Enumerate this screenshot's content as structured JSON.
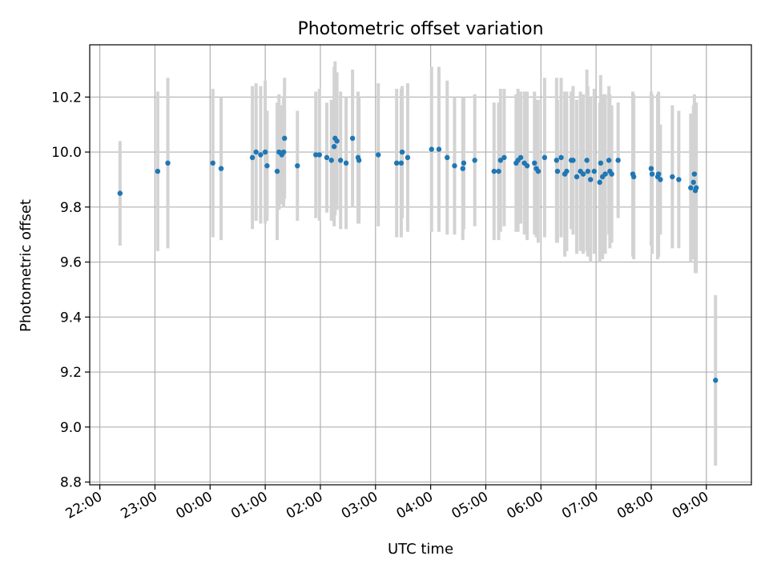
{
  "chart_data": {
    "type": "scatter",
    "title": "Photometric offset variation",
    "xlabel": "UTC time",
    "ylabel": "Photometric offset",
    "xlim": [
      "21:49",
      "09:49"
    ],
    "ylim": [
      8.79,
      10.39
    ],
    "grid": true,
    "x_ticks": [
      "22:00",
      "23:00",
      "00:00",
      "01:00",
      "02:00",
      "03:00",
      "04:00",
      "05:00",
      "06:00",
      "07:00",
      "08:00",
      "09:00"
    ],
    "y_ticks": [
      "8.8",
      "9.0",
      "9.2",
      "9.4",
      "9.6",
      "9.8",
      "10.0",
      "10.2"
    ],
    "colors": {
      "points": "#1f77b4",
      "errorbars": "#d3d3d3",
      "grid": "#b0b0b0"
    },
    "series": [
      {
        "x": [
          "22:22",
          "23:03",
          "23:14",
          "00:03",
          "00:12",
          "00:46",
          "00:50",
          "00:55",
          "01:00",
          "01:02",
          "01:13",
          "01:15",
          "01:18",
          "01:20",
          "01:21",
          "01:35",
          "01:55",
          "01:59",
          "02:07",
          "02:12",
          "02:15",
          "02:16",
          "02:18",
          "02:22",
          "02:28",
          "02:35",
          "02:41",
          "02:42",
          "03:03",
          "03:23",
          "03:28",
          "03:29",
          "03:35",
          "04:01",
          "04:09",
          "04:18",
          "04:26",
          "04:35",
          "04:36",
          "04:48",
          "05:09",
          "05:14",
          "05:16",
          "05:20",
          "05:33",
          "05:35",
          "05:38",
          "05:42",
          "05:45",
          "05:53",
          "05:55",
          "05:57",
          "06:04",
          "06:17",
          "06:18",
          "06:22",
          "06:26",
          "06:28",
          "06:33",
          "06:35",
          "06:39",
          "06:43",
          "06:46",
          "06:50",
          "06:51",
          "06:54",
          "06:58",
          "07:04",
          "07:05",
          "07:07",
          "07:10",
          "07:14",
          "07:15",
          "07:17",
          "07:24",
          "07:40",
          "07:41",
          "08:00",
          "08:01",
          "08:07",
          "08:08",
          "08:10",
          "08:23",
          "08:30",
          "08:43",
          "08:46",
          "08:47",
          "08:48",
          "08:49",
          "09:10"
        ],
        "y": [
          9.85,
          9.93,
          9.96,
          9.96,
          9.94,
          9.98,
          10.0,
          9.99,
          10.0,
          9.95,
          9.93,
          10.0,
          9.99,
          10.0,
          10.05,
          9.95,
          9.99,
          9.99,
          9.98,
          9.97,
          10.02,
          10.05,
          10.04,
          9.97,
          9.96,
          10.05,
          9.98,
          9.97,
          9.99,
          9.96,
          9.96,
          10.0,
          9.98,
          10.01,
          10.01,
          9.98,
          9.95,
          9.94,
          9.96,
          9.97,
          9.93,
          9.93,
          9.97,
          9.98,
          9.96,
          9.97,
          9.98,
          9.96,
          9.95,
          9.96,
          9.94,
          9.93,
          9.98,
          9.97,
          9.93,
          9.98,
          9.92,
          9.93,
          9.97,
          9.97,
          9.91,
          9.93,
          9.92,
          9.97,
          9.93,
          9.9,
          9.93,
          9.89,
          9.96,
          9.91,
          9.92,
          9.97,
          9.93,
          9.92,
          9.97,
          9.92,
          9.91,
          9.94,
          9.92,
          9.91,
          9.92,
          9.9,
          9.91,
          9.9,
          9.87,
          9.89,
          9.92,
          9.86,
          9.87,
          9.17
        ],
        "yerr": [
          0.19,
          0.29,
          0.31,
          0.27,
          0.26,
          0.26,
          0.25,
          0.25,
          0.26,
          0.2,
          0.25,
          0.21,
          0.18,
          0.2,
          0.22,
          0.2,
          0.23,
          0.24,
          0.2,
          0.22,
          0.29,
          0.28,
          0.25,
          0.25,
          0.24,
          0.25,
          0.24,
          0.23,
          0.26,
          0.27,
          0.27,
          0.24,
          0.27,
          0.3,
          0.3,
          0.28,
          0.25,
          0.26,
          0.24,
          0.24,
          0.25,
          0.25,
          0.26,
          0.25,
          0.25,
          0.26,
          0.24,
          0.26,
          0.27,
          0.26,
          0.25,
          0.26,
          0.29,
          0.3,
          0.26,
          0.29,
          0.3,
          0.29,
          0.25,
          0.27,
          0.28,
          0.29,
          0.29,
          0.33,
          0.31,
          0.3,
          0.3,
          0.29,
          0.32,
          0.3,
          0.29,
          0.27,
          0.28,
          0.25,
          0.21,
          0.3,
          0.3,
          0.28,
          0.29,
          0.3,
          0.3,
          0.2,
          0.26,
          0.25,
          0.27,
          0.28,
          0.29,
          0.3,
          0.31,
          0.31
        ]
      }
    ]
  }
}
